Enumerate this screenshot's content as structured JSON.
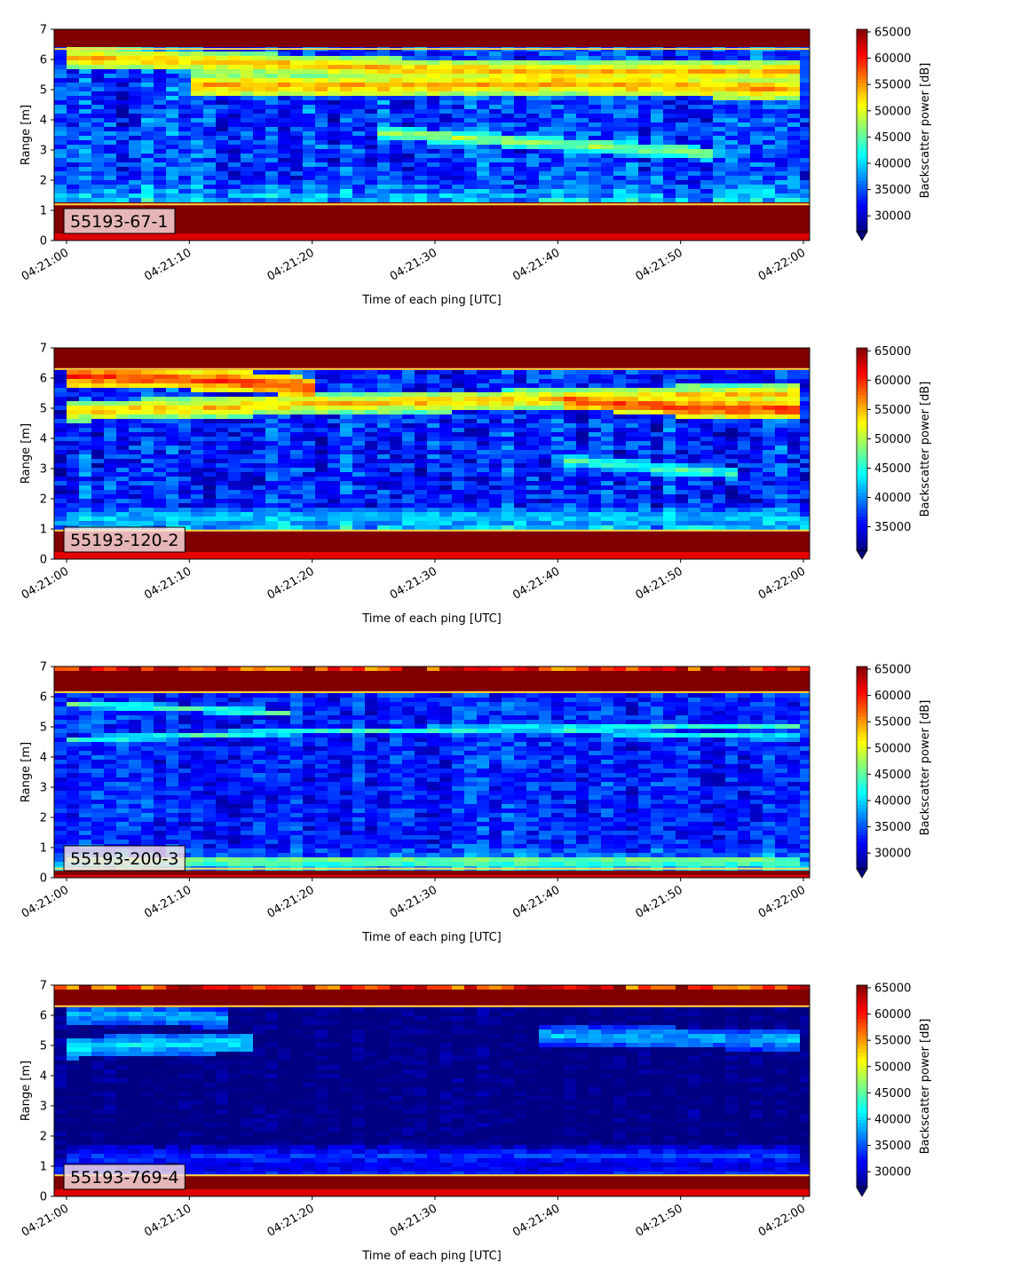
{
  "chart_data": [
    {
      "type": "heatmap",
      "annotation": "55193-67-1",
      "xlabel": "Time of each ping [UTC]",
      "ylabel": "Range [m]",
      "x_ticks": [
        "04:21:00",
        "04:21:10",
        "04:21:20",
        "04:21:30",
        "04:21:40",
        "04:21:50",
        "04:22:00"
      ],
      "y_ticks": [
        0,
        1,
        2,
        3,
        4,
        5,
        6,
        7
      ],
      "ylim": [
        0,
        7
      ],
      "colorbar": {
        "label": "Backscatter power [dB]",
        "ticks": [
          30000,
          35000,
          40000,
          45000,
          50000,
          55000,
          60000,
          65000
        ],
        "min": 27000,
        "max": 65500,
        "extend": "min"
      },
      "features": {
        "bottom_band": [
          0.2,
          1.2
        ],
        "top_band": [
          6.35,
          7.0
        ],
        "tracks": [
          {
            "t": [
              0,
              10,
              20,
              30,
              40,
              50,
              60
            ],
            "range": [
              6.05,
              5.95,
              5.8,
              5.65,
              5.6,
              5.6,
              5.6
            ],
            "value": 54000,
            "width": 0.35
          },
          {
            "t": [
              10,
              20,
              30,
              40,
              50,
              60
            ],
            "range": [
              5.15,
              5.1,
              5.15,
              5.2,
              5.1,
              5.0
            ],
            "value": 55000,
            "width": 0.35
          },
          {
            "t": [
              25,
              30,
              40,
              50,
              53
            ],
            "range": [
              3.6,
              3.45,
              3.2,
              2.95,
              2.85
            ],
            "value": 48000,
            "width": 0.22
          }
        ],
        "background": 34000,
        "noise": 5000
      }
    },
    {
      "type": "heatmap",
      "annotation": "55193-120-2",
      "xlabel": "Time of each ping [UTC]",
      "ylabel": "Range [m]",
      "x_ticks": [
        "04:21:00",
        "04:21:10",
        "04:21:20",
        "04:21:30",
        "04:21:40",
        "04:21:50",
        "04:22:00"
      ],
      "y_ticks": [
        0,
        1,
        2,
        3,
        4,
        5,
        6,
        7
      ],
      "ylim": [
        0,
        7
      ],
      "colorbar": {
        "label": "Backscatter power [dB]",
        "ticks": [
          35000,
          40000,
          45000,
          50000,
          55000,
          60000,
          65000
        ],
        "min": 31000,
        "max": 65500,
        "extend": "min"
      },
      "features": {
        "bottom_band": [
          0.2,
          0.95
        ],
        "top_band": [
          6.3,
          7.0
        ],
        "tracks": [
          {
            "t": [
              0,
              10,
              17,
              20
            ],
            "range": [
              6.05,
              5.95,
              5.8,
              5.65
            ],
            "value": 60000,
            "width": 0.35
          },
          {
            "t": [
              0,
              10,
              20,
              30,
              40,
              50,
              60
            ],
            "range": [
              4.9,
              5.0,
              5.15,
              5.2,
              5.3,
              5.4,
              5.45
            ],
            "value": 55000,
            "width": 0.35
          },
          {
            "t": [
              40,
              50,
              60
            ],
            "range": [
              5.3,
              5.0,
              4.95
            ],
            "value": 60000,
            "width": 0.3
          },
          {
            "t": [
              40,
              50,
              55
            ],
            "range": [
              3.3,
              2.95,
              2.85
            ],
            "value": 47000,
            "width": 0.22
          },
          {
            "t": [
              0,
              60
            ],
            "range": [
              1.4,
              1.4
            ],
            "value": 43000,
            "width": 0.3
          }
        ],
        "background": 36500,
        "noise": 4500
      }
    },
    {
      "type": "heatmap",
      "annotation": "55193-200-3",
      "xlabel": "Time of each ping [UTC]",
      "ylabel": "Range [m]",
      "x_ticks": [
        "04:21:00",
        "04:21:10",
        "04:21:20",
        "04:21:30",
        "04:21:40",
        "04:21:50",
        "04:22:00"
      ],
      "y_ticks": [
        0,
        1,
        2,
        3,
        4,
        5,
        6,
        7
      ],
      "ylim": [
        0,
        7
      ],
      "colorbar": {
        "label": "Backscatter power [dB]",
        "ticks": [
          30000,
          35000,
          40000,
          45000,
          50000,
          55000,
          60000,
          65000
        ],
        "min": 27000,
        "max": 65500,
        "extend": "min"
      },
      "features": {
        "bottom_band": [
          0.05,
          0.3
        ],
        "top_band": [
          6.15,
          7.0
        ],
        "tracks": [
          {
            "t": [
              0,
              10,
              18
            ],
            "range": [
              5.75,
              5.6,
              5.45
            ],
            "value": 45000,
            "width": 0.12
          },
          {
            "t": [
              0,
              10,
              20,
              30,
              40,
              50,
              60
            ],
            "range": [
              4.55,
              4.7,
              4.85,
              4.9,
              4.95,
              5.0,
              5.0
            ],
            "value": 44000,
            "width": 0.12
          },
          {
            "t": [
              40,
              50,
              60
            ],
            "range": [
              4.9,
              4.7,
              4.65
            ],
            "value": 44000,
            "width": 0.1
          },
          {
            "t": [
              0,
              60
            ],
            "range": [
              0.55,
              0.55
            ],
            "value": 48000,
            "width": 0.15
          }
        ],
        "background": 33000,
        "noise": 4000
      }
    },
    {
      "type": "heatmap",
      "annotation": "55193-769-4",
      "xlabel": "Time of each ping [UTC]",
      "ylabel": "Range [m]",
      "x_ticks": [
        "04:21:00",
        "04:21:10",
        "04:21:20",
        "04:21:30",
        "04:21:40",
        "04:21:50",
        "04:22:00"
      ],
      "y_ticks": [
        0,
        1,
        2,
        3,
        4,
        5,
        6,
        7
      ],
      "ylim": [
        0,
        7
      ],
      "colorbar": {
        "label": "Backscatter power [dB]",
        "ticks": [
          30000,
          35000,
          40000,
          45000,
          50000,
          55000,
          60000,
          65000
        ],
        "min": 27000,
        "max": 65500,
        "extend": "min"
      },
      "features": {
        "bottom_band": [
          0.25,
          0.7
        ],
        "top_band": [
          6.3,
          7.0
        ],
        "tracks": [
          {
            "t": [
              0,
              5,
              10,
              13
            ],
            "range": [
              6.0,
              6.0,
              5.95,
              5.9
            ],
            "value": 39000,
            "width": 0.35
          },
          {
            "t": [
              0,
              5,
              10,
              15
            ],
            "range": [
              4.9,
              5.0,
              5.05,
              5.1
            ],
            "value": 41000,
            "width": 0.35
          },
          {
            "t": [
              38,
              45,
              50,
              55,
              60
            ],
            "range": [
              5.3,
              5.3,
              5.25,
              5.2,
              5.2
            ],
            "value": 39000,
            "width": 0.35
          },
          {
            "t": [
              0,
              60
            ],
            "range": [
              1.3,
              1.35
            ],
            "value": 34000,
            "width": 0.35
          }
        ],
        "background": 27000,
        "noise": 2000
      }
    }
  ]
}
